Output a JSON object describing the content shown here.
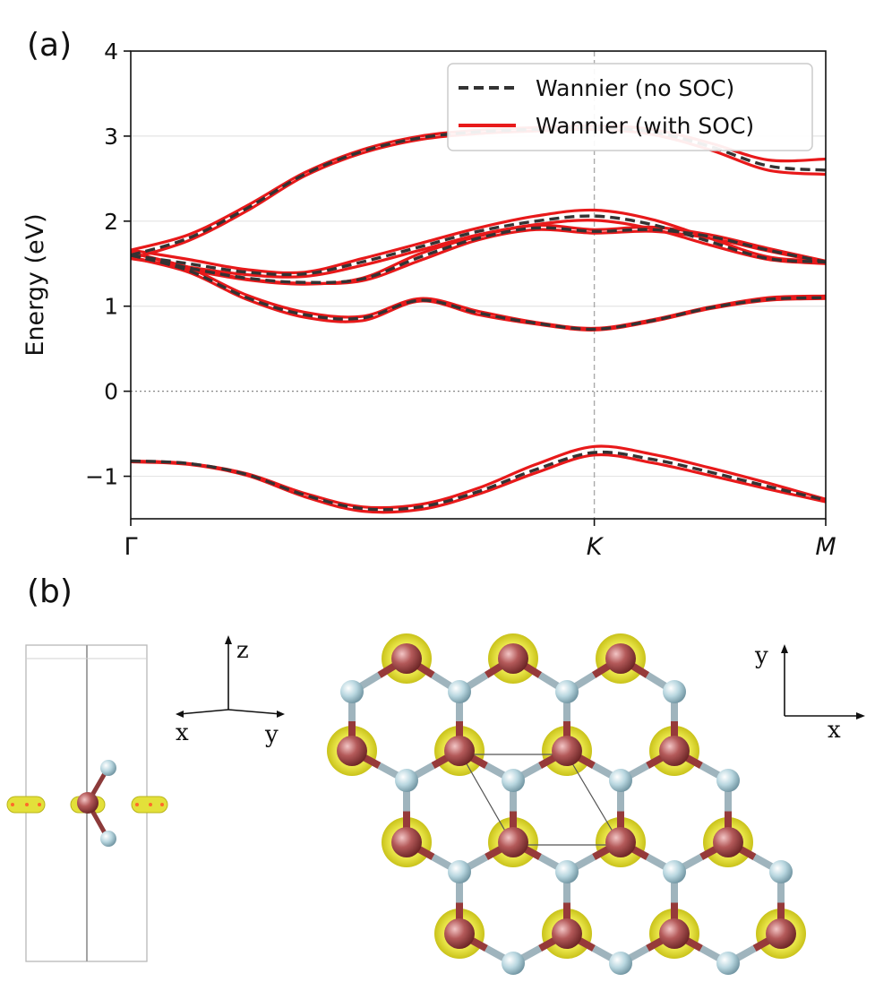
{
  "panel_a_label": "(a)",
  "panel_b_label": "(b)",
  "chart_data": {
    "type": "line",
    "title": "",
    "xlabel": "",
    "ylabel": "Energy (eV)",
    "ylim": [
      -1.5,
      4
    ],
    "yticks": [
      -1,
      0,
      1,
      2,
      3,
      4
    ],
    "ytick_labels": [
      "−1",
      "0",
      "1",
      "2",
      "3",
      "4"
    ],
    "x_ticks": [
      {
        "label": "Γ",
        "pos": 0.0
      },
      {
        "label": "K",
        "pos": 0.667
      },
      {
        "label": "M",
        "pos": 1.0
      }
    ],
    "legend": {
      "placement": "top-right",
      "entries": [
        {
          "label": "Wannier (no SOC)",
          "style": "dashed",
          "color": "#333333"
        },
        {
          "label": "Wannier (with SOC)",
          "style": "solid",
          "color": "#e8191a"
        }
      ]
    },
    "x": [
      0.0,
      0.083,
      0.167,
      0.25,
      0.333,
      0.417,
      0.5,
      0.583,
      0.667,
      0.75,
      0.833,
      0.917,
      1.0
    ],
    "series": [
      {
        "name": "Wannier (no SOC) band 1",
        "style": "dashed",
        "values": [
          -0.82,
          -0.85,
          -0.98,
          -1.22,
          -1.38,
          -1.36,
          -1.18,
          -0.92,
          -0.72,
          -0.8,
          -0.95,
          -1.12,
          -1.28
        ]
      },
      {
        "name": "Wannier (no SOC) band 2",
        "style": "dashed",
        "values": [
          1.6,
          1.42,
          1.1,
          0.9,
          0.86,
          1.07,
          0.92,
          0.8,
          0.73,
          0.83,
          0.98,
          1.08,
          1.1
        ]
      },
      {
        "name": "Wannier (no SOC) band 3",
        "style": "dashed",
        "values": [
          1.6,
          1.45,
          1.33,
          1.28,
          1.32,
          1.58,
          1.8,
          1.92,
          1.88,
          1.9,
          1.82,
          1.66,
          1.52
        ]
      },
      {
        "name": "Wannier (no SOC) band 4",
        "style": "dashed",
        "values": [
          1.6,
          1.5,
          1.4,
          1.38,
          1.52,
          1.7,
          1.88,
          2.0,
          2.06,
          1.96,
          1.76,
          1.56,
          1.52
        ]
      },
      {
        "name": "Wannier (no SOC) band 5",
        "style": "dashed",
        "values": [
          1.6,
          1.8,
          2.15,
          2.55,
          2.82,
          2.98,
          3.05,
          3.08,
          3.1,
          3.05,
          2.88,
          2.65,
          2.6
        ]
      },
      {
        "name": "Wannier (with SOC) band 1a",
        "style": "solid",
        "values": [
          -0.82,
          -0.85,
          -0.97,
          -1.2,
          -1.36,
          -1.33,
          -1.14,
          -0.86,
          -0.65,
          -0.74,
          -0.9,
          -1.08,
          -1.27
        ]
      },
      {
        "name": "Wannier (with SOC) band 1b",
        "style": "solid",
        "values": [
          -0.83,
          -0.86,
          -0.99,
          -1.24,
          -1.41,
          -1.39,
          -1.21,
          -0.96,
          -0.75,
          -0.84,
          -0.99,
          -1.15,
          -1.3
        ]
      },
      {
        "name": "Wannier (with SOC) band 2a",
        "style": "solid",
        "values": [
          1.63,
          1.45,
          1.13,
          0.93,
          0.88,
          1.09,
          0.94,
          0.81,
          0.74,
          0.84,
          0.99,
          1.1,
          1.12
        ]
      },
      {
        "name": "Wannier (with SOC) band 2b",
        "style": "solid",
        "values": [
          1.57,
          1.4,
          1.08,
          0.87,
          0.83,
          1.06,
          0.9,
          0.79,
          0.72,
          0.82,
          0.97,
          1.07,
          1.09
        ]
      },
      {
        "name": "Wannier (with SOC) band 3a",
        "style": "solid",
        "values": [
          1.63,
          1.46,
          1.32,
          1.27,
          1.3,
          1.54,
          1.78,
          1.9,
          1.86,
          1.88,
          1.8,
          1.65,
          1.51
        ]
      },
      {
        "name": "Wannier (with SOC) band 3b",
        "style": "solid",
        "values": [
          1.58,
          1.43,
          1.31,
          1.26,
          1.33,
          1.62,
          1.82,
          1.95,
          1.9,
          1.93,
          1.84,
          1.68,
          1.53
        ]
      },
      {
        "name": "Wannier (with SOC) band 4a",
        "style": "solid",
        "values": [
          1.66,
          1.55,
          1.43,
          1.4,
          1.56,
          1.74,
          1.92,
          2.06,
          2.13,
          2.02,
          1.8,
          1.58,
          1.53
        ]
      },
      {
        "name": "Wannier (with SOC) band 4b",
        "style": "solid",
        "values": [
          1.56,
          1.46,
          1.37,
          1.35,
          1.48,
          1.66,
          1.84,
          1.96,
          2.01,
          1.91,
          1.72,
          1.55,
          1.5
        ]
      },
      {
        "name": "Wannier (with SOC) band 5a",
        "style": "solid",
        "values": [
          1.66,
          1.84,
          2.18,
          2.57,
          2.84,
          3.0,
          3.07,
          3.1,
          3.12,
          3.08,
          2.92,
          2.72,
          2.73
        ]
      },
      {
        "name": "Wannier (with SOC) band 5b",
        "style": "solid",
        "values": [
          1.56,
          1.77,
          2.12,
          2.53,
          2.8,
          2.96,
          3.03,
          3.06,
          3.08,
          3.02,
          2.84,
          2.6,
          2.55
        ]
      }
    ]
  },
  "panel_b": {
    "side_axes": {
      "z": "z",
      "x": "x",
      "y": "y"
    },
    "top_axes": {
      "y": "y",
      "x": "x"
    }
  },
  "colors": {
    "soc": "#e8191a",
    "nosoc": "#333333",
    "metal_atom": "#b45a5a",
    "ligand_atom": "#b9d7e0",
    "orbital": "#e3e03a",
    "bond": "#9fb4bd"
  }
}
